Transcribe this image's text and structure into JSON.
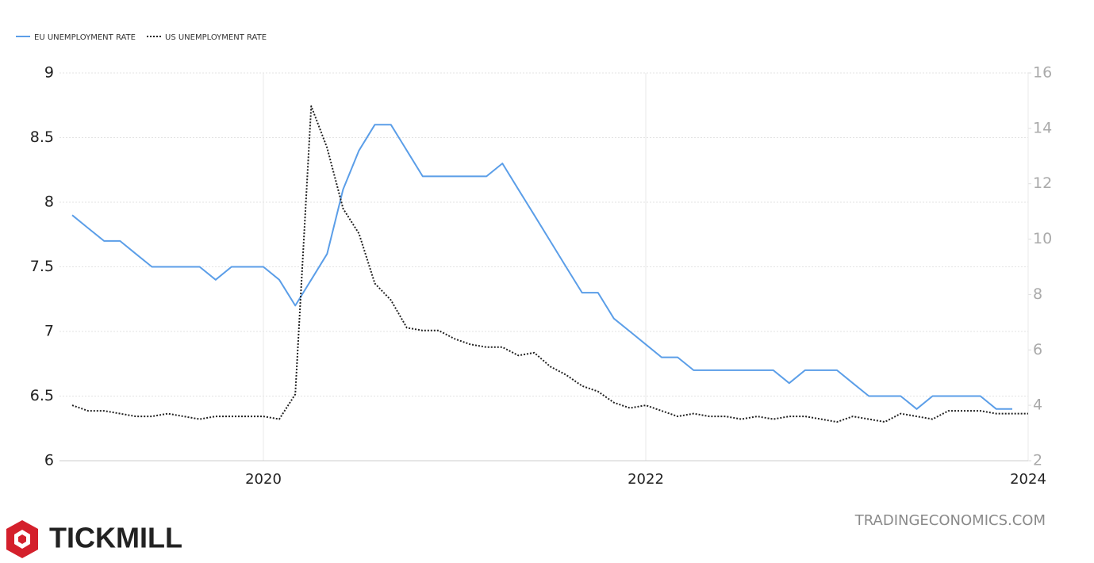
{
  "chart_data": {
    "type": "line",
    "legend_position": "top-left",
    "grid": true,
    "x": [
      2019,
      2019.083,
      2019.167,
      2019.25,
      2019.333,
      2019.417,
      2019.5,
      2019.583,
      2019.667,
      2019.75,
      2019.833,
      2019.917,
      2020,
      2020.083,
      2020.167,
      2020.25,
      2020.333,
      2020.417,
      2020.5,
      2020.583,
      2020.667,
      2020.75,
      2020.833,
      2020.917,
      2021,
      2021.083,
      2021.167,
      2021.25,
      2021.333,
      2021.417,
      2021.5,
      2021.583,
      2021.667,
      2021.75,
      2021.833,
      2021.917,
      2022,
      2022.083,
      2022.167,
      2022.25,
      2022.333,
      2022.417,
      2022.5,
      2022.583,
      2022.667,
      2022.75,
      2022.833,
      2022.917,
      2023,
      2023.083,
      2023.167,
      2023.25,
      2023.333,
      2023.417,
      2023.5,
      2023.583,
      2023.667,
      2023.75,
      2023.833,
      2023.917,
      2024
    ],
    "xlim": [
      2019,
      2024
    ],
    "xticks": [
      2020,
      2022,
      2024
    ],
    "ylim": [
      6,
      9
    ],
    "yticks": [
      6,
      6.5,
      7,
      7.5,
      8,
      8.5,
      9
    ],
    "y2lim": [
      2,
      16
    ],
    "y2ticks": [
      2,
      4,
      6,
      8,
      10,
      12,
      14,
      16
    ],
    "series": [
      {
        "name": "EU UNEMPLOYMENT RATE",
        "color": "#5b9ee8",
        "dash": "solid",
        "values": [
          7.9,
          7.8,
          7.7,
          7.7,
          7.6,
          7.5,
          7.5,
          7.5,
          7.5,
          7.4,
          7.5,
          7.5,
          7.5,
          7.4,
          7.2,
          7.4,
          7.6,
          8.1,
          8.4,
          8.6,
          8.6,
          8.4,
          8.2,
          8.2,
          8.2,
          8.2,
          8.2,
          8.3,
          8.1,
          7.9,
          7.7,
          7.5,
          7.3,
          7.3,
          7.1,
          7.0,
          6.9,
          6.8,
          6.8,
          6.7,
          6.7,
          6.7,
          6.7,
          6.7,
          6.7,
          6.6,
          6.7,
          6.7,
          6.7,
          6.6,
          6.5,
          6.5,
          6.5,
          6.4,
          6.5,
          6.5,
          6.5,
          6.5,
          6.4,
          6.4,
          null
        ]
      },
      {
        "name": "US UNEMPLOYMENT RATE",
        "color": "#222222",
        "dash": "dotted",
        "axis": "y2",
        "values": [
          4.0,
          3.8,
          3.8,
          3.7,
          3.6,
          3.6,
          3.7,
          3.6,
          3.5,
          3.6,
          3.6,
          3.6,
          3.6,
          3.5,
          4.4,
          14.8,
          13.3,
          11.1,
          10.2,
          8.4,
          7.8,
          6.8,
          6.7,
          6.7,
          6.4,
          6.2,
          6.1,
          6.1,
          5.8,
          5.9,
          5.4,
          5.1,
          4.7,
          4.5,
          4.1,
          3.9,
          4.0,
          3.8,
          3.6,
          3.7,
          3.6,
          3.6,
          3.5,
          3.6,
          3.5,
          3.6,
          3.6,
          3.5,
          3.4,
          3.6,
          3.5,
          3.4,
          3.7,
          3.6,
          3.5,
          3.8,
          3.8,
          3.8,
          3.7,
          3.7,
          3.7
        ]
      }
    ]
  },
  "watermark": "TRADINGECONOMICS.COM",
  "brand": "TICKMILL"
}
